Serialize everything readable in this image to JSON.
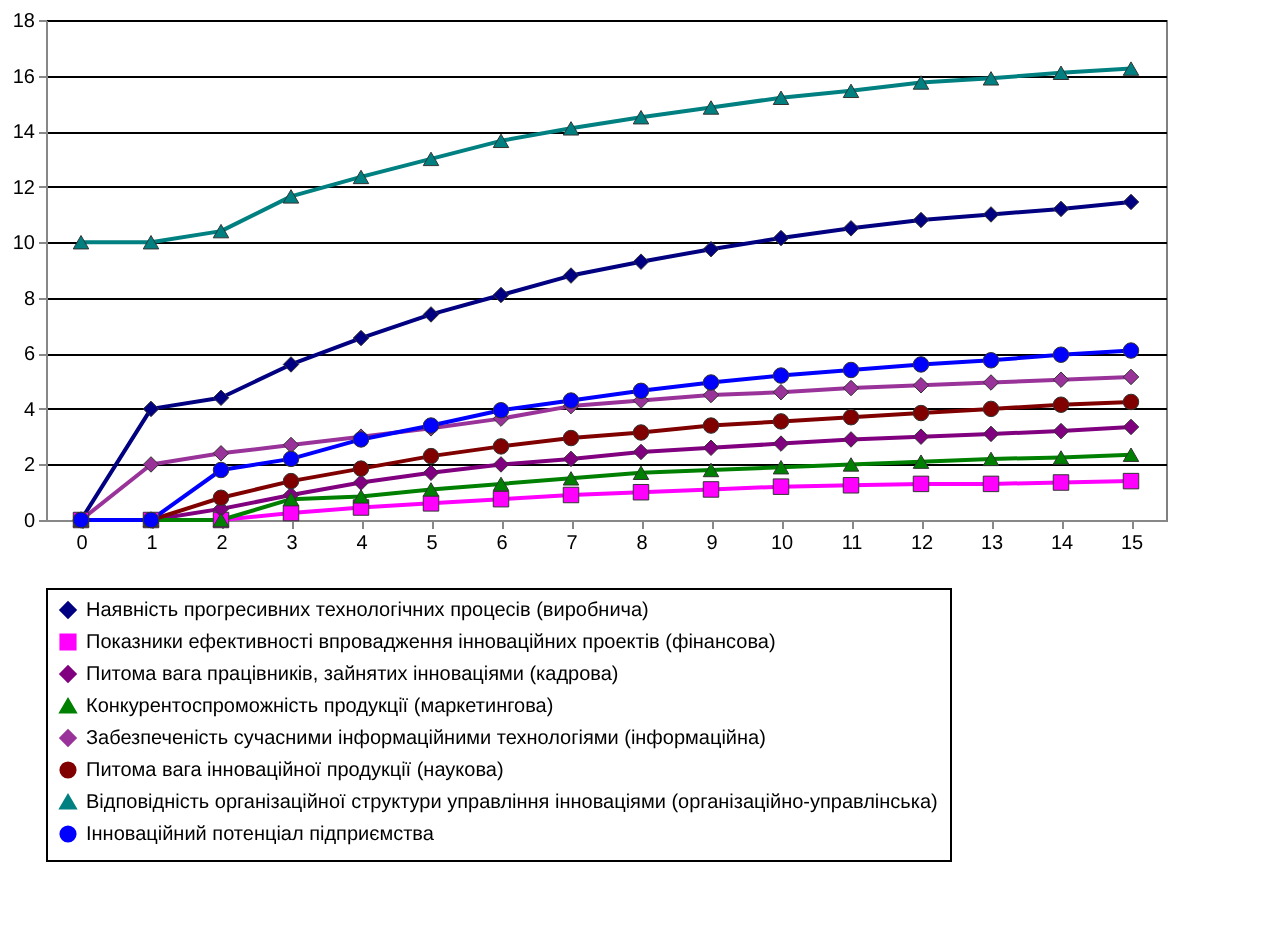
{
  "chart_data": {
    "type": "line",
    "x": [
      0,
      1,
      2,
      3,
      4,
      5,
      6,
      7,
      8,
      9,
      10,
      11,
      12,
      13,
      14,
      15
    ],
    "xlim": [
      -0.5,
      15.5
    ],
    "xticks": [
      0,
      1,
      2,
      3,
      4,
      5,
      6,
      7,
      8,
      9,
      10,
      11,
      12,
      13,
      14,
      15
    ],
    "ylim": [
      0,
      18
    ],
    "yticks": [
      0,
      2,
      4,
      6,
      8,
      10,
      12,
      14,
      16,
      18
    ],
    "grid": "y",
    "legend": "bottom",
    "series": [
      {
        "name": "Наявність прогресивних технологічних процесів (виробнича)",
        "color": "#000080",
        "marker": "diamond",
        "values": [
          0,
          4,
          4.4,
          5.6,
          6.55,
          7.4,
          8.1,
          8.8,
          9.3,
          9.75,
          10.15,
          10.5,
          10.8,
          11,
          11.2,
          11.45
        ]
      },
      {
        "name": "Показники ефективності впровадження інноваційних проектів (фінансова)",
        "color": "#ff00ff",
        "marker": "square",
        "values": [
          0,
          0,
          0,
          0.25,
          0.45,
          0.6,
          0.75,
          0.9,
          1.0,
          1.1,
          1.2,
          1.25,
          1.3,
          1.3,
          1.35,
          1.4
        ]
      },
      {
        "name": "Питома вага працівників, зайнятих інноваціями (кадрова)",
        "color": "#800080",
        "marker": "diamond",
        "values": [
          0,
          0,
          0.4,
          0.9,
          1.35,
          1.7,
          2.0,
          2.2,
          2.45,
          2.6,
          2.75,
          2.9,
          3.0,
          3.1,
          3.2,
          3.35
        ]
      },
      {
        "name": "Конкурентоспроможність продукції (маркетингова)",
        "color": "#008000",
        "marker": "triangle",
        "values": [
          0,
          0,
          0,
          0.75,
          0.85,
          1.1,
          1.3,
          1.5,
          1.7,
          1.8,
          1.9,
          2.0,
          2.1,
          2.2,
          2.25,
          2.35
        ]
      },
      {
        "name": "Забезпеченість сучасними інформаційними технологіями (інформаційна)",
        "color": "#993399",
        "marker": "diamond",
        "values": [
          0,
          2,
          2.4,
          2.7,
          3.0,
          3.3,
          3.65,
          4.1,
          4.3,
          4.5,
          4.6,
          4.75,
          4.85,
          4.95,
          5.05,
          5.15
        ]
      },
      {
        "name": "Питома вага інноваційної продукції (наукова)",
        "color": "#800000",
        "marker": "circle",
        "values": [
          0,
          0,
          0.8,
          1.4,
          1.85,
          2.3,
          2.65,
          2.95,
          3.15,
          3.4,
          3.55,
          3.7,
          3.85,
          4.0,
          4.15,
          4.25
        ]
      },
      {
        "name": "Відповідність організаційної структури управління інноваціями (організаційно-управлінська)",
        "color": "#008080",
        "marker": "triangle",
        "values": [
          10,
          10,
          10.4,
          11.65,
          12.35,
          13.0,
          13.65,
          14.1,
          14.5,
          14.85,
          15.2,
          15.45,
          15.75,
          15.9,
          16.1,
          16.25
        ]
      },
      {
        "name": "Інноваційний потенціал підприємства",
        "color": "#0000ff",
        "marker": "circle",
        "values": [
          0,
          0,
          1.8,
          2.2,
          2.9,
          3.4,
          3.95,
          4.3,
          4.65,
          4.95,
          5.2,
          5.4,
          5.6,
          5.75,
          5.95,
          6.1
        ]
      }
    ]
  }
}
